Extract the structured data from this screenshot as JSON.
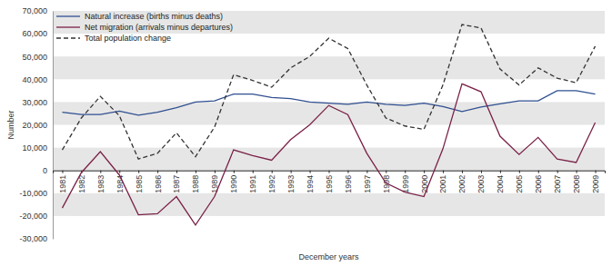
{
  "chart_data": {
    "type": "line",
    "x_label": "December years",
    "y_label": "Number",
    "categories": [
      "1981",
      "1982",
      "1983",
      "1984",
      "1985",
      "1986",
      "1987",
      "1988",
      "1989",
      "1990",
      "1991",
      "1992",
      "1993",
      "1994",
      "1995",
      "1996",
      "1997",
      "1998",
      "1999",
      "2000",
      "2001",
      "2002",
      "2003",
      "2004",
      "2005",
      "2006",
      "2007",
      "2008",
      "2009"
    ],
    "series": [
      {
        "name": "Natural increase (births minus deaths)",
        "color": "#2f4f91",
        "line_style": "solid",
        "values": [
          25500,
          24500,
          24500,
          26000,
          24200,
          25500,
          27500,
          30000,
          30500,
          33500,
          33500,
          32000,
          31500,
          30000,
          29500,
          29000,
          30000,
          29000,
          28500,
          29500,
          28000,
          25800,
          27800,
          29200,
          30500,
          30500,
          35000,
          35000,
          33500
        ]
      },
      {
        "name": "Net migration (arrivals minus departures)",
        "color": "#7a2147",
        "line_style": "solid",
        "values": [
          -16500,
          -1000,
          8200,
          -2000,
          -19500,
          -19000,
          -11500,
          -24000,
          -11500,
          9000,
          6500,
          4500,
          13500,
          20000,
          28500,
          24500,
          7500,
          -5500,
          -9500,
          -11500,
          9500,
          38000,
          34500,
          15000,
          7000,
          14500,
          5000,
          3500,
          21000
        ]
      },
      {
        "name": "Total population change",
        "color": "#333333",
        "line_style": "dashed",
        "values": [
          9000,
          23000,
          32500,
          24000,
          5000,
          7500,
          16500,
          6000,
          19000,
          42000,
          39500,
          36500,
          45000,
          50000,
          58000,
          53500,
          37500,
          23000,
          19500,
          18000,
          37500,
          64000,
          62500,
          44500,
          37500,
          45000,
          40500,
          38500,
          54500
        ]
      }
    ],
    "ylim": [
      -30000,
      70000
    ],
    "yticks": [
      {
        "value": -30000,
        "label": "-30,000"
      },
      {
        "value": -20000,
        "label": "-20,000"
      },
      {
        "value": -10000,
        "label": "-10,000"
      },
      0,
      {
        "value": 10000,
        "label": "10,000"
      },
      {
        "value": 20000,
        "label": "20,000"
      },
      {
        "value": 30000,
        "label": "30,000"
      },
      {
        "value": 40000,
        "label": "40,000"
      },
      {
        "value": 50000,
        "label": "50,000"
      },
      {
        "value": 60000,
        "label": "60,000"
      },
      {
        "value": 70000,
        "label": "70,000"
      }
    ],
    "grid": true,
    "legend": "top-left"
  }
}
